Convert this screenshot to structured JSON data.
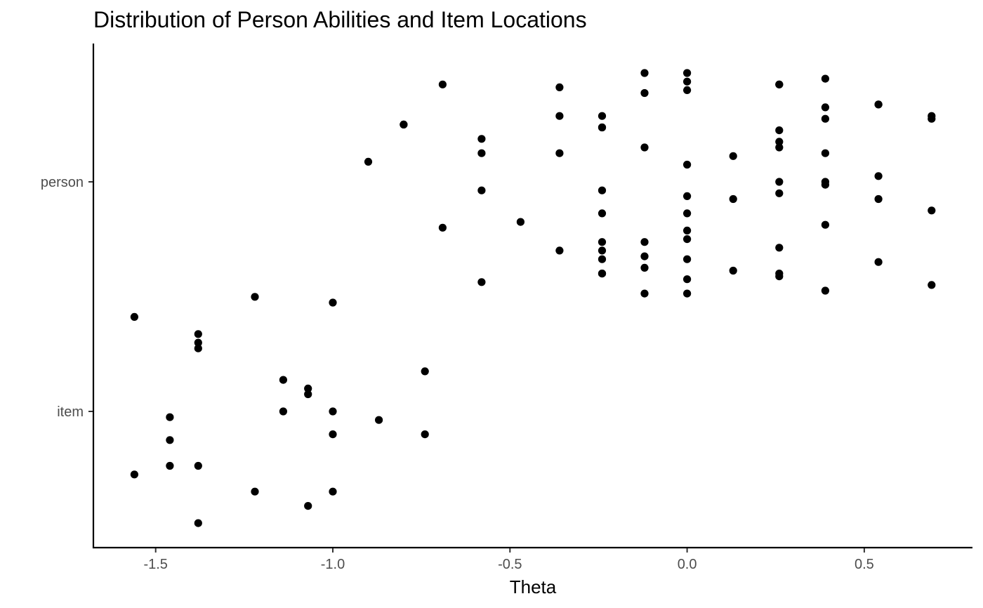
{
  "chart_data": {
    "type": "scatter",
    "title": "Distribution of Person Abilities and Item Locations",
    "xlabel": "Theta",
    "ylabel": "",
    "xlim": [
      -1.67,
      0.81
    ],
    "x_ticks": [
      -1.5,
      -1.0,
      -0.5,
      0.0,
      0.5
    ],
    "x_tick_labels": [
      "-1.5",
      "-1.0",
      "-0.5",
      "0.0",
      "0.5"
    ],
    "categories": [
      "item",
      "person"
    ],
    "jitter": 0.4,
    "grid": false,
    "legend": "none",
    "point_color": "#000000",
    "series": [
      {
        "category": "person",
        "points": [
          [
            -0.12,
            0.38
          ],
          [
            0.0,
            0.38
          ],
          [
            0.0,
            0.35
          ],
          [
            0.0,
            0.32
          ],
          [
            -0.12,
            0.31
          ],
          [
            -0.36,
            0.33
          ],
          [
            -0.69,
            0.34
          ],
          [
            0.26,
            0.34
          ],
          [
            0.26,
            0.34
          ],
          [
            0.39,
            0.36
          ],
          [
            0.54,
            0.27
          ],
          [
            0.54,
            0.27
          ],
          [
            0.39,
            0.26
          ],
          [
            0.39,
            0.22
          ],
          [
            0.69,
            0.23
          ],
          [
            0.69,
            0.22
          ],
          [
            -0.36,
            0.23
          ],
          [
            -0.24,
            0.23
          ],
          [
            -0.24,
            0.19
          ],
          [
            -0.24,
            0.19
          ],
          [
            -0.8,
            0.2
          ],
          [
            -0.8,
            0.2
          ],
          [
            0.26,
            0.18
          ],
          [
            0.26,
            0.14
          ],
          [
            0.26,
            0.12
          ],
          [
            -0.58,
            0.15
          ],
          [
            -0.58,
            0.1
          ],
          [
            -0.12,
            0.12
          ],
          [
            -0.36,
            0.1
          ],
          [
            0.39,
            0.1
          ],
          [
            0.13,
            0.09
          ],
          [
            0.0,
            0.06
          ],
          [
            -0.9,
            0.07
          ],
          [
            0.54,
            0.02
          ],
          [
            0.26,
            0.0
          ],
          [
            0.39,
            0.0
          ],
          [
            0.39,
            -0.01
          ],
          [
            -0.24,
            -0.03
          ],
          [
            -0.58,
            -0.03
          ],
          [
            0.26,
            -0.04
          ],
          [
            0.0,
            -0.05
          ],
          [
            0.13,
            -0.06
          ],
          [
            0.54,
            -0.06
          ],
          [
            0.39,
            -0.15
          ],
          [
            0.69,
            -0.1
          ],
          [
            -0.24,
            -0.11
          ],
          [
            0.0,
            -0.11
          ],
          [
            -0.47,
            -0.14
          ],
          [
            -0.69,
            -0.16
          ],
          [
            0.0,
            -0.17
          ],
          [
            0.0,
            -0.2
          ],
          [
            -0.24,
            -0.21
          ],
          [
            -0.12,
            -0.21
          ],
          [
            -0.36,
            -0.24
          ],
          [
            -0.24,
            -0.24
          ],
          [
            0.26,
            -0.23
          ],
          [
            -0.12,
            -0.26
          ],
          [
            -0.24,
            -0.27
          ],
          [
            0.0,
            -0.27
          ],
          [
            0.54,
            -0.28
          ],
          [
            -0.12,
            -0.3
          ],
          [
            0.13,
            -0.31
          ],
          [
            -0.24,
            -0.32
          ],
          [
            -0.24,
            -0.32
          ],
          [
            0.26,
            -0.32
          ],
          [
            0.26,
            -0.33
          ],
          [
            0.0,
            -0.34
          ],
          [
            -0.58,
            -0.35
          ],
          [
            0.69,
            -0.36
          ],
          [
            0.39,
            -0.38
          ],
          [
            -0.12,
            -0.39
          ],
          [
            0.0,
            -0.39
          ]
        ]
      },
      {
        "category": "item",
        "points": [
          [
            -1.0,
            0.38
          ],
          [
            -1.22,
            0.4
          ],
          [
            -1.56,
            0.33
          ],
          [
            -1.38,
            0.27
          ],
          [
            -1.38,
            0.24
          ],
          [
            -1.38,
            0.22
          ],
          [
            -0.74,
            0.14
          ],
          [
            -1.14,
            0.11
          ],
          [
            -1.07,
            0.08
          ],
          [
            -1.07,
            0.06
          ],
          [
            -1.14,
            0.0
          ],
          [
            -1.0,
            0.0
          ],
          [
            -1.46,
            -0.02
          ],
          [
            -0.87,
            -0.03
          ],
          [
            -1.0,
            -0.08
          ],
          [
            -0.74,
            -0.08
          ],
          [
            -1.46,
            -0.1
          ],
          [
            -1.46,
            -0.19
          ],
          [
            -1.38,
            -0.19
          ],
          [
            -1.56,
            -0.22
          ],
          [
            -1.22,
            -0.28
          ],
          [
            -1.0,
            -0.28
          ],
          [
            -1.07,
            -0.33
          ],
          [
            -1.38,
            -0.39
          ]
        ]
      }
    ]
  }
}
